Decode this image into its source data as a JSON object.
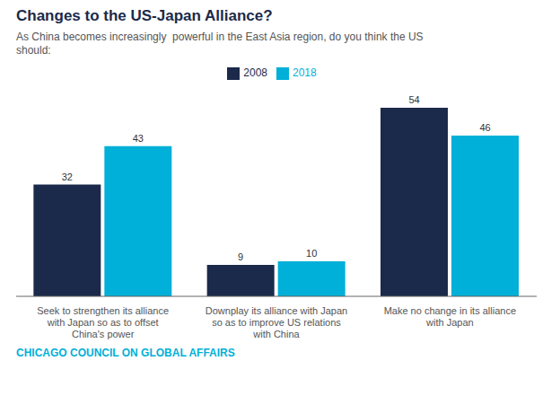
{
  "chart_data": {
    "type": "bar",
    "title": "Changes to the US-Japan Alliance?",
    "subtitle": "As China becomes increasingly  powerful in the East Asia region, do you think the US\nshould:",
    "annotations": [
      "CHICAGO COUNCIL ON GLOBAL AFFAIRS"
    ],
    "categories": [
      "Seek to strengthen its alliance\nwith Japan so as to offset\nChina's power",
      "Downplay its alliance with Japan\nso as to improve US relations\nwith China",
      "Make no change in its alliance\nwith Japan"
    ],
    "series": [
      {
        "name": "2008",
        "color": "#1b2a4a",
        "values": [
          32,
          9,
          54
        ]
      },
      {
        "name": "2018",
        "color": "#00b0d8",
        "values": [
          43,
          10,
          46
        ]
      }
    ],
    "ylim": [
      0,
      62
    ],
    "grid": false,
    "legend": "top",
    "data_labels": true,
    "tick_labels": "x"
  }
}
